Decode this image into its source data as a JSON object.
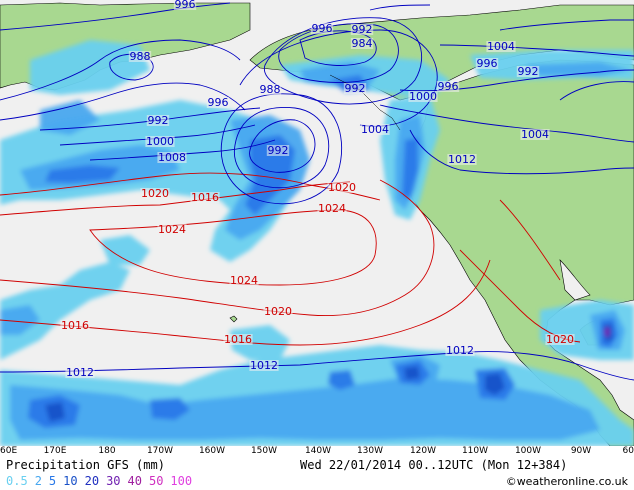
{
  "product_title": "Precipitation GFS (mm)",
  "valid_time": "Wed 22/01/2014 00..12UTC  (Mon 12+384)",
  "credit": "©weatheronline.co.uk",
  "legend": [
    {
      "label": "0.5",
      "color": "#6ad0f0"
    },
    {
      "label": "2",
      "color": "#48a8f0"
    },
    {
      "label": "5",
      "color": "#2878e8"
    },
    {
      "label": "10",
      "color": "#1850c8"
    },
    {
      "label": "20",
      "color": "#2030c0"
    },
    {
      "label": "30",
      "color": "#7020b0"
    },
    {
      "label": "40",
      "color": "#a020a0"
    },
    {
      "label": "50",
      "color": "#d030c0"
    },
    {
      "label": "100",
      "color": "#e040e0"
    }
  ],
  "longitude_labels": [
    "60E",
    "170E",
    "180",
    "170W",
    "160W",
    "150W",
    "140W",
    "130W",
    "120W",
    "110W",
    "100W",
    "90W",
    "60"
  ],
  "isobar_labels": [
    {
      "value": "996",
      "color": "#0000c0"
    },
    {
      "value": "996",
      "color": "#0000c0"
    },
    {
      "value": "992",
      "color": "#0000c0"
    },
    {
      "value": "984",
      "color": "#0000c0"
    },
    {
      "value": "1004",
      "color": "#0000c0"
    },
    {
      "value": "988",
      "color": "#0000c0"
    },
    {
      "value": "996",
      "color": "#0000c0"
    },
    {
      "value": "992",
      "color": "#0000c0"
    },
    {
      "value": "988",
      "color": "#0000c0"
    },
    {
      "value": "992",
      "color": "#0000c0"
    },
    {
      "value": "996",
      "color": "#0000c0"
    },
    {
      "value": "1000",
      "color": "#0000c0"
    },
    {
      "value": "996",
      "color": "#0000c0"
    },
    {
      "value": "992",
      "color": "#0000c0"
    },
    {
      "value": "1004",
      "color": "#0000c0"
    },
    {
      "value": "1000",
      "color": "#0000c0"
    },
    {
      "value": "992",
      "color": "#0000c0"
    },
    {
      "value": "1008",
      "color": "#0000c0"
    },
    {
      "value": "1004",
      "color": "#0000c0"
    },
    {
      "value": "1012",
      "color": "#0000c0"
    },
    {
      "value": "1020",
      "color": "#d00000"
    },
    {
      "value": "1020",
      "color": "#d00000"
    },
    {
      "value": "1016",
      "color": "#d00000"
    },
    {
      "value": "1024",
      "color": "#d00000"
    },
    {
      "value": "1024",
      "color": "#d00000"
    },
    {
      "value": "1024",
      "color": "#d00000"
    },
    {
      "value": "1020",
      "color": "#d00000"
    },
    {
      "value": "1016",
      "color": "#d00000"
    },
    {
      "value": "1016",
      "color": "#d00000"
    },
    {
      "value": "1020",
      "color": "#d00000"
    },
    {
      "value": "1012",
      "color": "#0000c0"
    },
    {
      "value": "1012",
      "color": "#0000c0"
    },
    {
      "value": "1012",
      "color": "#0000c0"
    }
  ],
  "colors": {
    "ocean": "#f0f0f0",
    "land": "#a8d890",
    "coast": "#000000",
    "high_isobar": "#d00000",
    "low_isobar": "#0000c0"
  }
}
